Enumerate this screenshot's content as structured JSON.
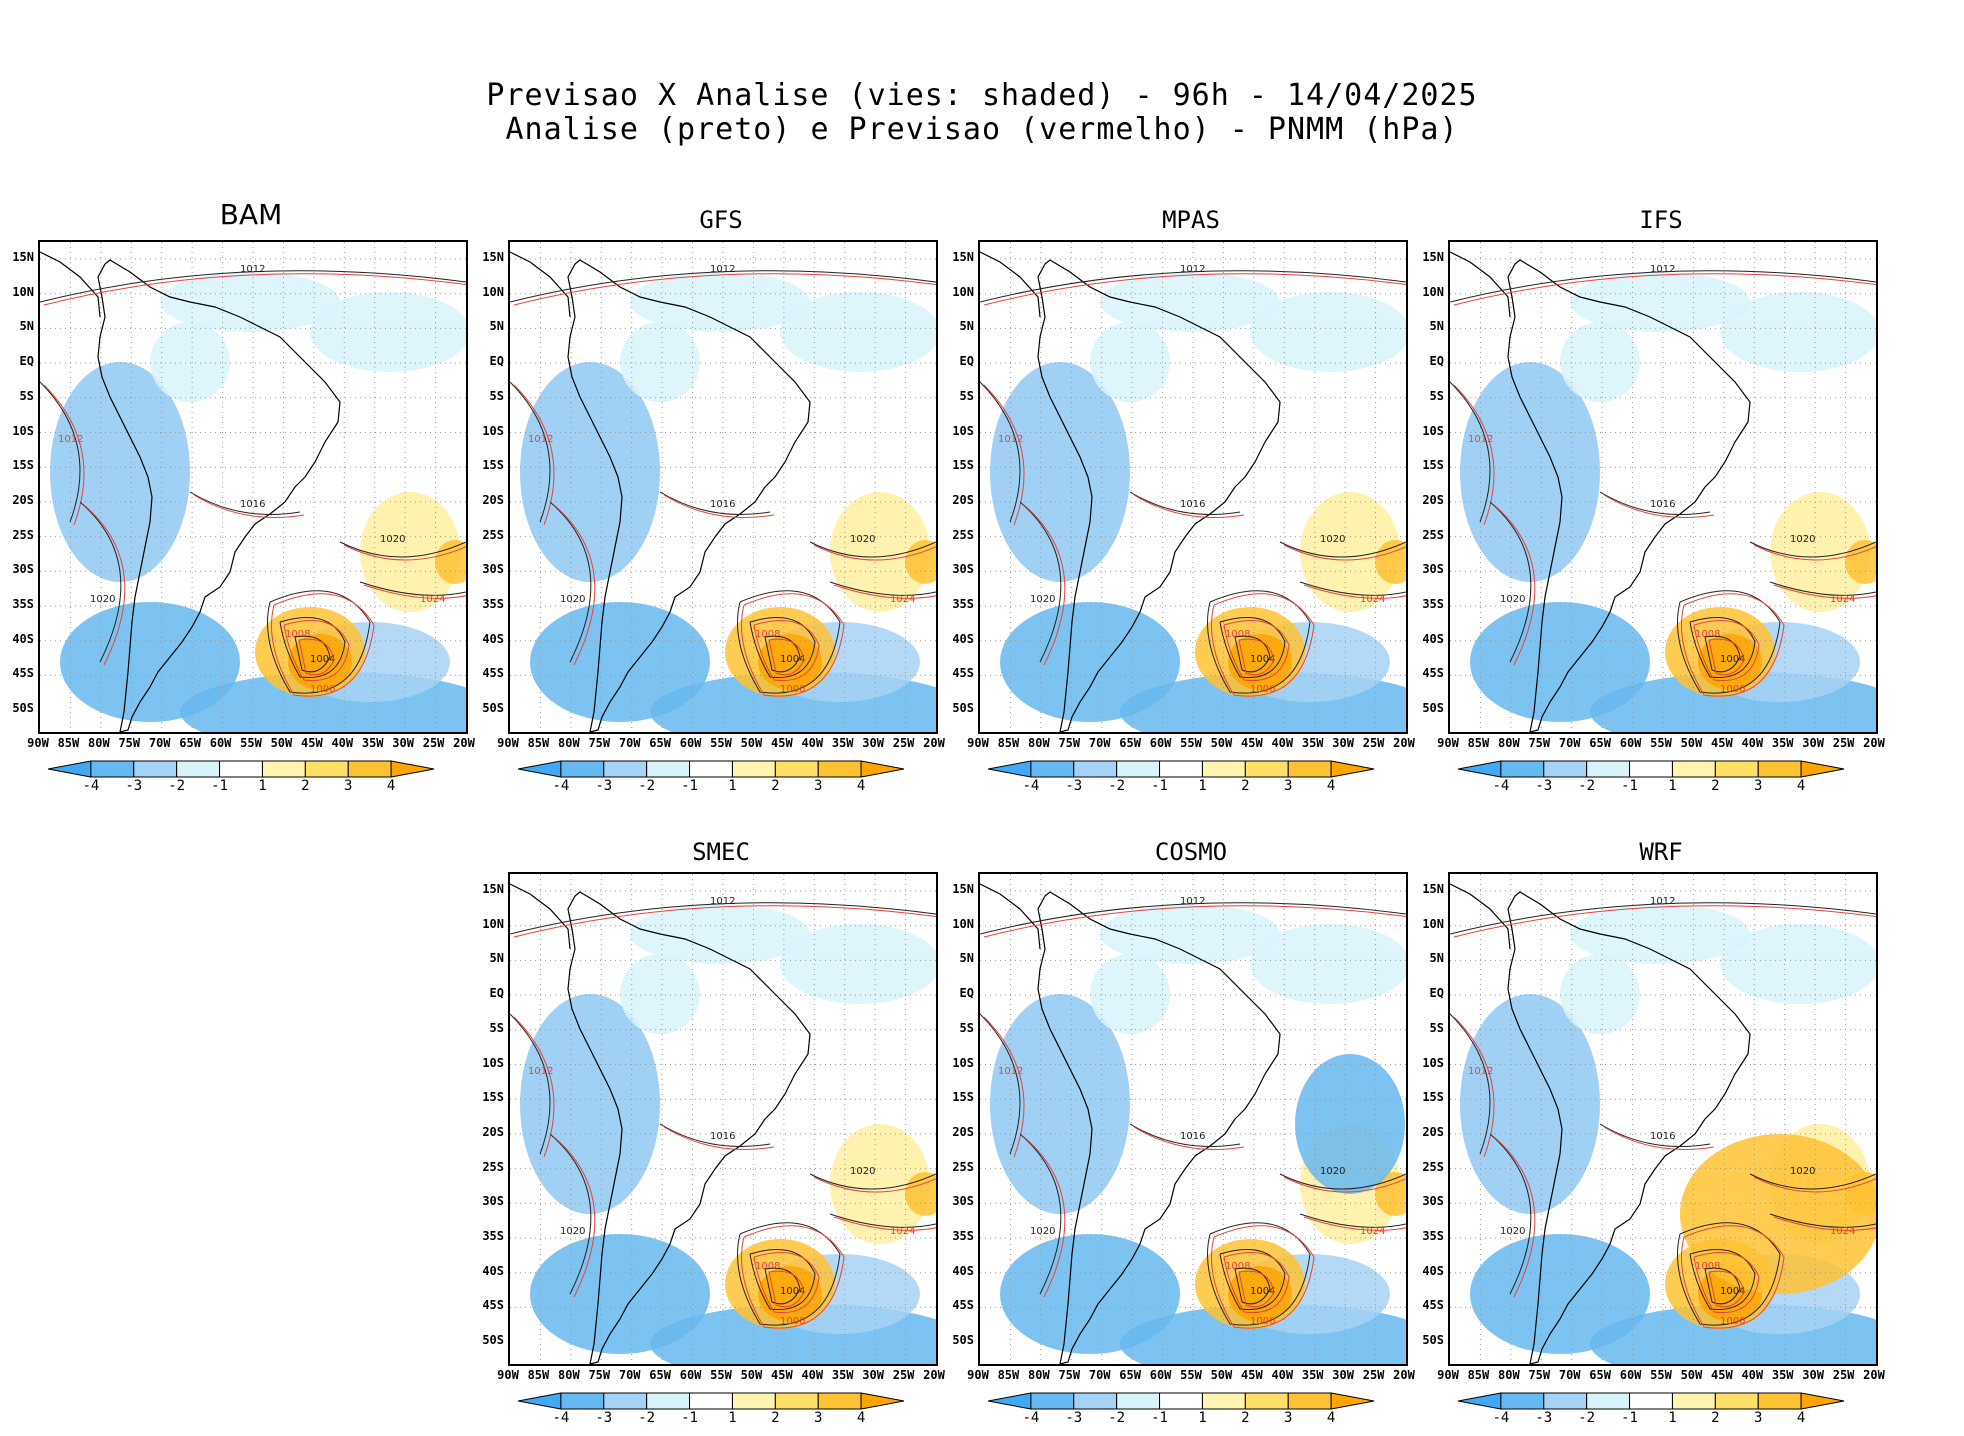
{
  "header": {
    "line1": "Previsao X Analise (vies: shaded) - 96h - 14/04/2025",
    "line2": "Analise (preto) e Previsao (vermelho) - PNMM (hPa)"
  },
  "axes": {
    "lat_labels": [
      "15N",
      "10N",
      "5N",
      "EQ",
      "5S",
      "10S",
      "15S",
      "20S",
      "25S",
      "30S",
      "35S",
      "40S",
      "45S",
      "50S"
    ],
    "lon_labels": [
      "90W",
      "85W",
      "80W",
      "75W",
      "70W",
      "65W",
      "60W",
      "55W",
      "50W",
      "45W",
      "40W",
      "35W",
      "30W",
      "25W",
      "20W"
    ]
  },
  "colorbar": {
    "labels": [
      "-4",
      "-3",
      "-2",
      "-1",
      "1",
      "2",
      "3",
      "4"
    ],
    "colors": [
      "#3fa9f5",
      "#66b8f0",
      "#a6d2f5",
      "#d9f3fb",
      "#ffffff",
      "#fff5b0",
      "#ffe066",
      "#ffc233",
      "#ffa500"
    ]
  },
  "panels": [
    {
      "name": "BAM",
      "contours": [
        "1012",
        "1016",
        "1020",
        "1024",
        "1008",
        "1004",
        "1000"
      ]
    },
    {
      "name": "GFS",
      "contours": [
        "1012",
        "1016",
        "1020",
        "1024",
        "1008",
        "1004",
        "1000"
      ]
    },
    {
      "name": "MPAS",
      "contours": [
        "1012",
        "1016",
        "1020",
        "1024",
        "1008",
        "1004",
        "1000"
      ]
    },
    {
      "name": "IFS",
      "contours": [
        "1012",
        "1016",
        "1020",
        "1024",
        "1008",
        "1004",
        "1000"
      ]
    },
    {
      "name": "SMEC",
      "contours": [
        "1012",
        "1016",
        "1020",
        "1024",
        "1008",
        "1004",
        "1000"
      ]
    },
    {
      "name": "COSMO",
      "contours": [
        "1012",
        "1016",
        "1020",
        "1024",
        "1008",
        "1004",
        "1000"
      ]
    },
    {
      "name": "WRF",
      "contours": [
        "1012",
        "1016",
        "1020",
        "1024",
        "1008",
        "1004",
        "1000"
      ]
    }
  ]
}
